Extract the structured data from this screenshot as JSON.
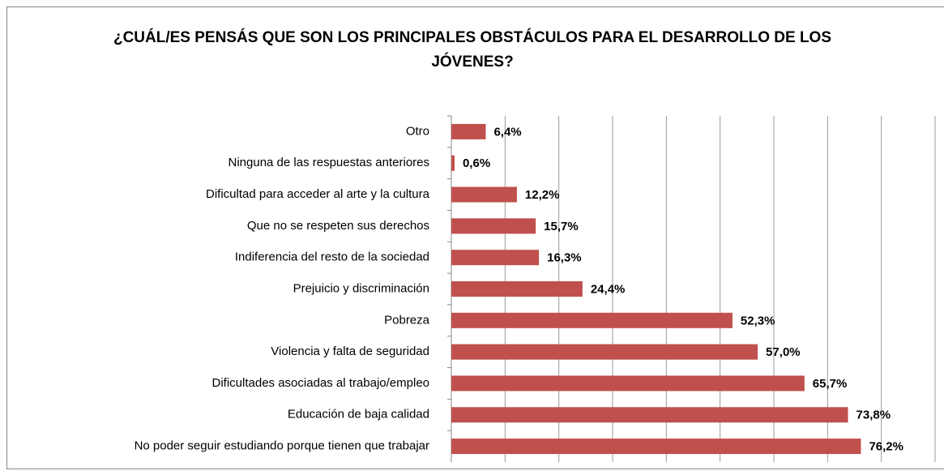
{
  "chart_data": {
    "type": "bar",
    "orientation": "horizontal",
    "title": "¿CUÁL/ES PENSÁS QUE SON LOS PRINCIPALES OBSTÁCULOS PARA EL DESARROLLO DE LOS JÓVENES?",
    "categories": [
      "Otro",
      "Ninguna de las respuestas anteriores",
      "Dificultad para acceder al arte y la cultura",
      "Que no se respeten sus derechos",
      "Indiferencia del resto de la sociedad",
      "Prejuicio y discriminación",
      "Pobreza",
      "Violencia y falta de seguridad",
      "Dificultades asociadas al trabajo/empleo",
      "Educación de baja calidad",
      "No poder seguir estudiando porque tienen que trabajar"
    ],
    "values": [
      6.4,
      0.6,
      12.2,
      15.7,
      16.3,
      24.4,
      52.3,
      57.0,
      65.7,
      73.8,
      76.2
    ],
    "value_labels": [
      "6,4%",
      "0,6%",
      "12,2%",
      "15,7%",
      "16,3%",
      "24,4%",
      "52,3%",
      "57,0%",
      "65,7%",
      "73,8%",
      "76,2%"
    ],
    "color": "#c0504d",
    "xlim": [
      0,
      90
    ],
    "xticks": [
      0,
      10,
      20,
      30,
      40,
      50,
      60,
      70,
      80,
      90
    ],
    "grid": true
  }
}
